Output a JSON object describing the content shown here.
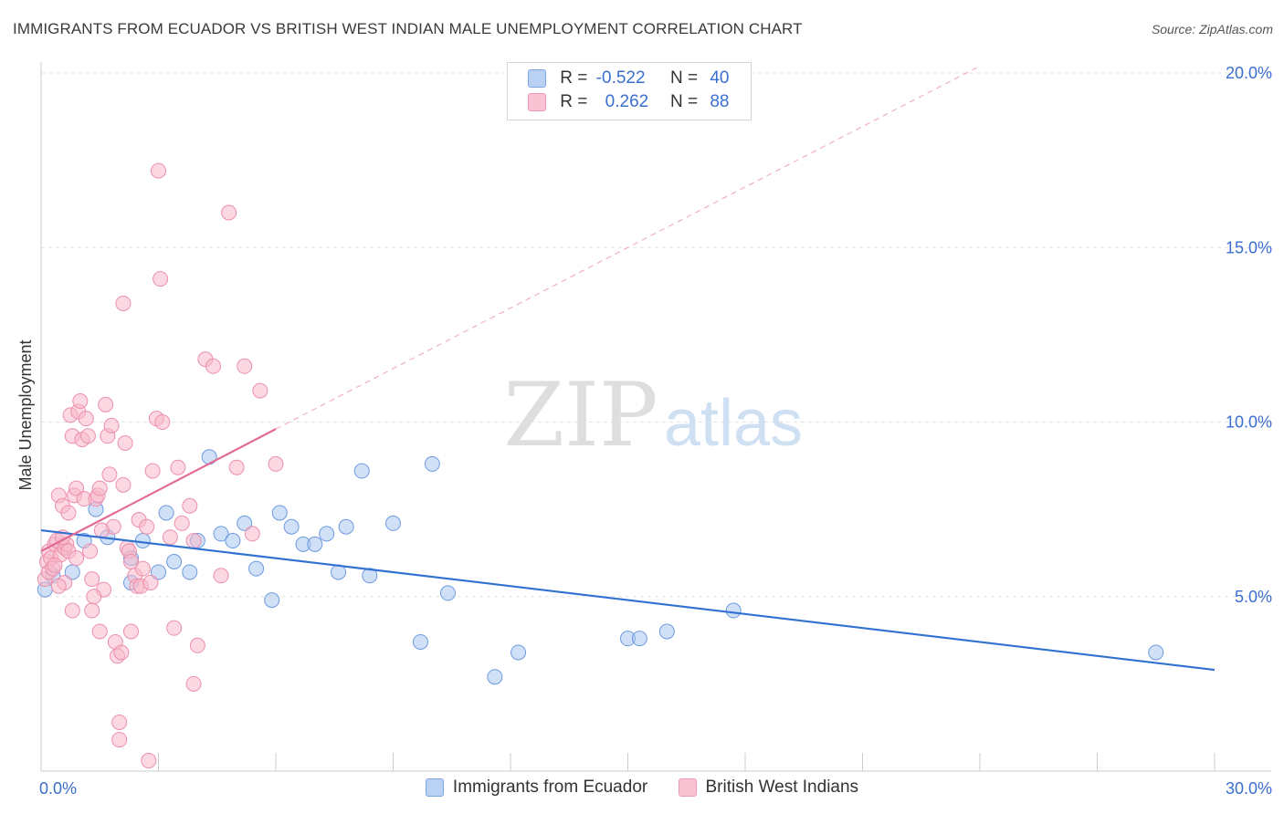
{
  "title": "IMMIGRANTS FROM ECUADOR VS BRITISH WEST INDIAN MALE UNEMPLOYMENT CORRELATION CHART",
  "source": "Source: ZipAtlas.com",
  "watermark": {
    "zip": "ZIP",
    "atlas": "atlas"
  },
  "legend_stats": [
    {
      "r_label": "R =",
      "r_value": "-0.522",
      "n_label": "N =",
      "n_value": "40"
    },
    {
      "r_label": "R =",
      "r_value": "0.262",
      "n_label": "N =",
      "n_value": "88"
    }
  ],
  "chart_data": {
    "type": "scatter",
    "ylabel": "Male Unemployment",
    "xlim": [
      0,
      30
    ],
    "ylim": [
      0,
      20
    ],
    "x_tick_labels": [
      "0.0%",
      "30.0%"
    ],
    "y_ticks": [
      5,
      10,
      15,
      20
    ],
    "y_tick_labels": [
      "5.0%",
      "10.0%",
      "15.0%",
      "20.0%"
    ],
    "grid": true,
    "legend_position": "bottom",
    "series": [
      {
        "name": "Immigrants from Ecuador",
        "fill": "#a9c6ef",
        "stroke": "#6d9ae0",
        "line_color": "#3171d1",
        "trend": {
          "x0": 0,
          "y0": 6.9,
          "x1": 30,
          "y1": 2.9
        },
        "points": [
          [
            0.1,
            5.2
          ],
          [
            0.3,
            5.6
          ],
          [
            0.8,
            5.7
          ],
          [
            1.1,
            6.6
          ],
          [
            1.4,
            7.5
          ],
          [
            1.7,
            6.7
          ],
          [
            2.3,
            5.4
          ],
          [
            2.3,
            6.1
          ],
          [
            2.6,
            6.6
          ],
          [
            3.0,
            5.7
          ],
          [
            3.2,
            7.4
          ],
          [
            3.4,
            6.0
          ],
          [
            3.8,
            5.7
          ],
          [
            4.0,
            6.6
          ],
          [
            4.3,
            9.0
          ],
          [
            4.6,
            6.8
          ],
          [
            4.9,
            6.6
          ],
          [
            5.2,
            7.1
          ],
          [
            5.5,
            5.8
          ],
          [
            5.9,
            4.9
          ],
          [
            6.1,
            7.4
          ],
          [
            6.4,
            7.0
          ],
          [
            6.7,
            6.5
          ],
          [
            7.0,
            6.5
          ],
          [
            7.3,
            6.8
          ],
          [
            7.6,
            5.7
          ],
          [
            7.8,
            7.0
          ],
          [
            8.2,
            8.6
          ],
          [
            8.4,
            5.6
          ],
          [
            9.0,
            7.1
          ],
          [
            9.7,
            3.7
          ],
          [
            10.0,
            8.8
          ],
          [
            10.4,
            5.1
          ],
          [
            11.6,
            2.7
          ],
          [
            12.2,
            3.4
          ],
          [
            15.0,
            3.8
          ],
          [
            15.3,
            3.8
          ],
          [
            16.0,
            4.0
          ],
          [
            17.7,
            4.6
          ],
          [
            28.5,
            3.4
          ]
        ]
      },
      {
        "name": "British West Indians",
        "fill": "#f7b8cb",
        "stroke": "#ec8fac",
        "line_color": "#e36c95",
        "trend": {
          "x0": 0,
          "y0": 6.3,
          "x1": 6.0,
          "y1": 9.8
        },
        "trend_ext": {
          "x0": 6.0,
          "y0": 9.8,
          "x1": 24.0,
          "y1": 20.2
        },
        "points": [
          [
            0.1,
            5.5
          ],
          [
            0.15,
            6.0
          ],
          [
            0.2,
            6.3
          ],
          [
            0.2,
            5.7
          ],
          [
            0.25,
            6.1
          ],
          [
            0.3,
            5.8
          ],
          [
            0.35,
            6.5
          ],
          [
            0.4,
            6.6
          ],
          [
            0.45,
            7.9
          ],
          [
            0.5,
            6.2
          ],
          [
            0.55,
            7.6
          ],
          [
            0.6,
            5.4
          ],
          [
            0.6,
            6.4
          ],
          [
            0.65,
            6.5
          ],
          [
            0.7,
            6.3
          ],
          [
            0.75,
            10.2
          ],
          [
            0.8,
            9.6
          ],
          [
            0.8,
            4.6
          ],
          [
            0.85,
            7.9
          ],
          [
            0.9,
            8.1
          ],
          [
            0.95,
            10.3
          ],
          [
            1.0,
            10.6
          ],
          [
            1.05,
            9.5
          ],
          [
            1.1,
            7.8
          ],
          [
            1.15,
            10.1
          ],
          [
            1.2,
            9.6
          ],
          [
            1.25,
            6.3
          ],
          [
            1.3,
            5.5
          ],
          [
            1.3,
            4.6
          ],
          [
            1.4,
            7.8
          ],
          [
            1.45,
            7.9
          ],
          [
            1.5,
            8.1
          ],
          [
            1.5,
            4.0
          ],
          [
            1.6,
            5.2
          ],
          [
            1.65,
            10.5
          ],
          [
            1.7,
            9.6
          ],
          [
            1.75,
            8.5
          ],
          [
            1.8,
            9.9
          ],
          [
            1.85,
            7.0
          ],
          [
            1.9,
            3.7
          ],
          [
            1.95,
            3.3
          ],
          [
            2.0,
            0.9
          ],
          [
            2.0,
            1.4
          ],
          [
            2.05,
            3.4
          ],
          [
            2.1,
            8.2
          ],
          [
            2.1,
            13.4
          ],
          [
            2.15,
            9.4
          ],
          [
            2.2,
            6.4
          ],
          [
            2.25,
            6.3
          ],
          [
            2.3,
            6.0
          ],
          [
            2.3,
            4.0
          ],
          [
            2.4,
            5.6
          ],
          [
            2.45,
            5.3
          ],
          [
            2.5,
            7.2
          ],
          [
            2.55,
            5.3
          ],
          [
            2.6,
            5.8
          ],
          [
            2.7,
            7.0
          ],
          [
            2.75,
            0.3
          ],
          [
            2.8,
            5.4
          ],
          [
            2.85,
            8.6
          ],
          [
            2.95,
            10.1
          ],
          [
            3.0,
            17.2
          ],
          [
            3.05,
            14.1
          ],
          [
            3.1,
            10.0
          ],
          [
            3.3,
            6.7
          ],
          [
            3.4,
            4.1
          ],
          [
            3.5,
            8.7
          ],
          [
            3.6,
            7.1
          ],
          [
            3.8,
            7.6
          ],
          [
            3.9,
            2.5
          ],
          [
            3.9,
            6.6
          ],
          [
            4.0,
            3.6
          ],
          [
            4.2,
            11.8
          ],
          [
            4.4,
            11.6
          ],
          [
            4.6,
            5.6
          ],
          [
            4.8,
            16.0
          ],
          [
            5.0,
            8.7
          ],
          [
            5.2,
            11.6
          ],
          [
            5.4,
            6.8
          ],
          [
            5.6,
            10.9
          ],
          [
            6.0,
            8.8
          ],
          [
            0.35,
            5.9
          ],
          [
            0.55,
            6.7
          ],
          [
            0.7,
            7.4
          ],
          [
            1.35,
            5.0
          ],
          [
            0.45,
            5.3
          ],
          [
            1.55,
            6.9
          ],
          [
            0.9,
            6.1
          ]
        ]
      }
    ]
  }
}
